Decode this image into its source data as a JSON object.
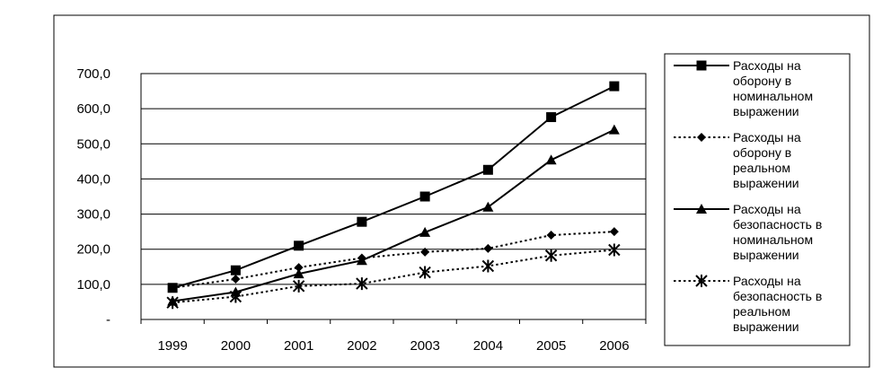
{
  "chart_data": {
    "type": "line",
    "title": "",
    "xlabel": "",
    "ylabel": "",
    "categories": [
      "1999",
      "2000",
      "2001",
      "2002",
      "2003",
      "2004",
      "2005",
      "2006"
    ],
    "ylim": [
      0,
      700
    ],
    "y_ticks": [
      0,
      100,
      200,
      300,
      400,
      500,
      600,
      700
    ],
    "y_tick_labels": [
      "-",
      "100,0",
      "200,0",
      "300,0",
      "400,0",
      "500,0",
      "600,0",
      "700,0"
    ],
    "grid": true,
    "legend_position": "right",
    "series": [
      {
        "name": "Расходы на оборону в номинальном выражении",
        "name_lines": [
          "Расходы на",
          "оборону в",
          "номинальном",
          "выражении"
        ],
        "style": "solid",
        "marker": "square",
        "values": [
          90,
          140,
          210,
          278,
          350,
          426,
          576,
          664
        ]
      },
      {
        "name": "Расходы на оборону в реальном выражении",
        "name_lines": [
          "Расходы на",
          "оборону в",
          "реальном",
          "выражении"
        ],
        "style": "dotted",
        "marker": "diamond",
        "values": [
          90,
          115,
          148,
          175,
          192,
          202,
          240,
          250
        ]
      },
      {
        "name": "Расходы на безопасность в номинальном выражении",
        "name_lines": [
          "Расходы на",
          "безопасность в",
          "номинальном",
          "выражении"
        ],
        "style": "solid",
        "marker": "triangle",
        "values": [
          52,
          78,
          130,
          168,
          248,
          320,
          454,
          540
        ]
      },
      {
        "name": "Расходы на безопасность в реальном выражении",
        "name_lines": [
          "Расходы на",
          "безопасность в",
          "реальном",
          "выражении"
        ],
        "style": "dotted",
        "marker": "star",
        "values": [
          48,
          65,
          95,
          102,
          134,
          152,
          182,
          198
        ]
      }
    ],
    "colors": {
      "line": "#000000",
      "grid": "#000000",
      "background": "#ffffff"
    }
  }
}
